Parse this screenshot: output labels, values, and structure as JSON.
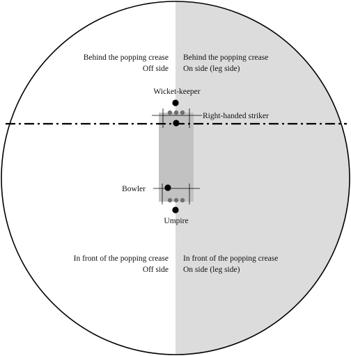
{
  "colors": {
    "background": "#ffffff",
    "leg_side_fill": "#dcdcdc",
    "pitch_fill": "#c2c2c2",
    "outline": "#000000",
    "stumps_dots": "#707070"
  },
  "regions": {
    "behind_off": {
      "line1": "Behind the popping crease",
      "line2": "Off side"
    },
    "behind_on": {
      "line1": "Behind the popping crease",
      "line2": "On side (leg side)"
    },
    "front_off": {
      "line1": "In front of the popping crease",
      "line2": "Off side"
    },
    "front_on": {
      "line1": "In front of the popping crease",
      "line2": "On side (leg side)"
    }
  },
  "players": {
    "wicket_keeper": "Wicket-keeper",
    "striker": "Right-handed striker",
    "bowler": "Bowler",
    "umpire": "Umpire"
  }
}
